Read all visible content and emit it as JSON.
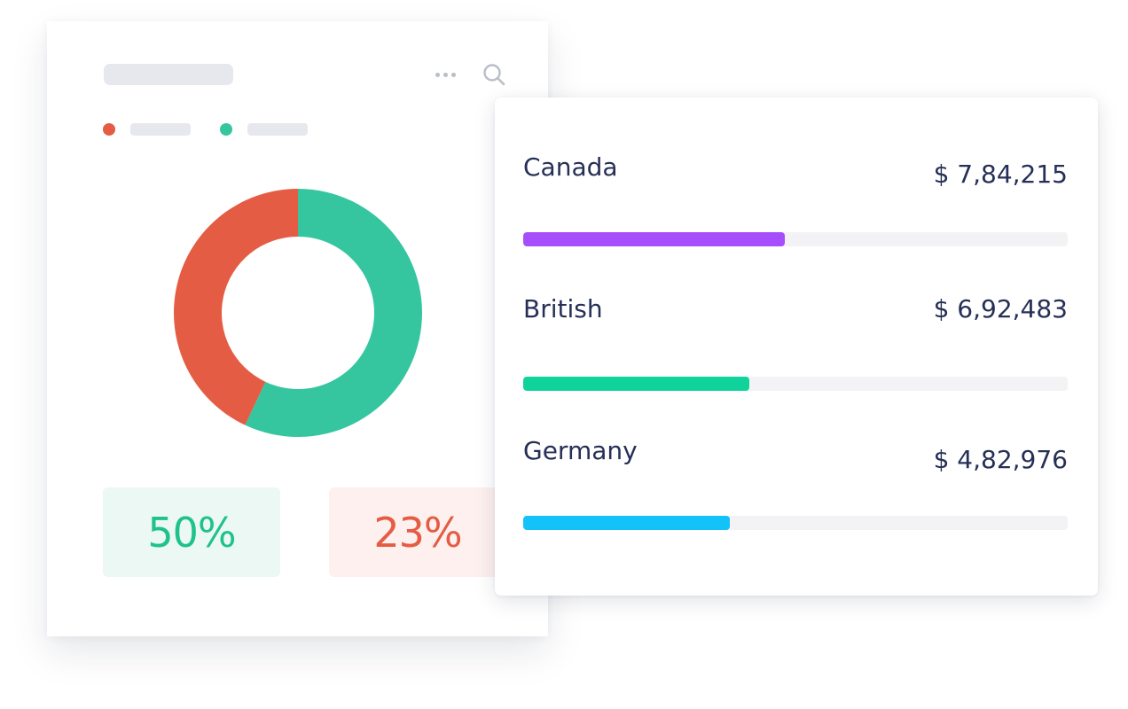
{
  "overview_card": {
    "stats": [
      {
        "label": "50%",
        "color": "#1fc28b"
      },
      {
        "label": "23%",
        "color": "#e55c44"
      }
    ],
    "legend_colors": [
      "#e55c44",
      "#35c69f"
    ],
    "chart_data": {
      "type": "pie",
      "values": [
        57,
        43
      ],
      "colors": [
        "#35c69f",
        "#e55c44"
      ]
    }
  },
  "countries": [
    {
      "name": "Canada",
      "value": "$ 7,84,215",
      "progress": 0.48,
      "color": "#a64efc"
    },
    {
      "name": "British",
      "value": "$ 6,92,483",
      "progress": 0.415,
      "color": "#0fd39b"
    },
    {
      "name": "Germany",
      "value": "$ 4,82,976",
      "progress": 0.38,
      "color": "#12c2f9"
    }
  ]
}
